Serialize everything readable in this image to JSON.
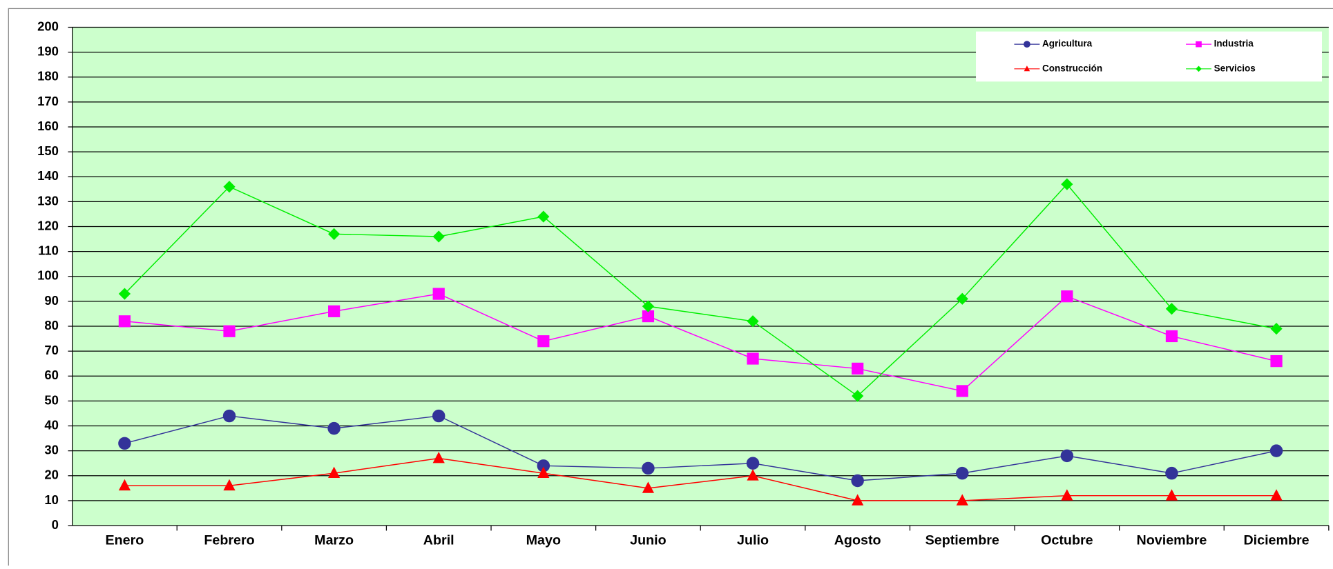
{
  "chart_data": {
    "type": "line",
    "categories": [
      "Enero",
      "Febrero",
      "Marzo",
      "Abril",
      "Mayo",
      "Junio",
      "Julio",
      "Agosto",
      "Septiembre",
      "Octubre",
      "Noviembre",
      "Diciembre"
    ],
    "series": [
      {
        "name": "Agricultura",
        "color": "#333399",
        "marker": "circle",
        "values": [
          33,
          44,
          39,
          44,
          24,
          23,
          25,
          18,
          21,
          28,
          21,
          30
        ]
      },
      {
        "name": "Industria",
        "color": "#ff00ff",
        "marker": "square",
        "values": [
          82,
          78,
          86,
          93,
          74,
          84,
          67,
          63,
          54,
          92,
          76,
          66
        ]
      },
      {
        "name": "Construcción",
        "color": "#ff0000",
        "marker": "triangle",
        "values": [
          16,
          16,
          21,
          27,
          21,
          15,
          20,
          10,
          10,
          12,
          12,
          12
        ]
      },
      {
        "name": "Servicios",
        "color": "#00ee00",
        "marker": "diamond",
        "values": [
          93,
          136,
          117,
          116,
          124,
          88,
          82,
          52,
          91,
          137,
          87,
          79
        ]
      }
    ],
    "ylim": [
      0,
      200
    ],
    "yticks": [
      0,
      10,
      20,
      30,
      40,
      50,
      60,
      70,
      80,
      90,
      100,
      110,
      120,
      130,
      140,
      150,
      160,
      170,
      180,
      190,
      200
    ],
    "grid": true,
    "legend": "top-right",
    "plot_background": "#ccffcc"
  }
}
